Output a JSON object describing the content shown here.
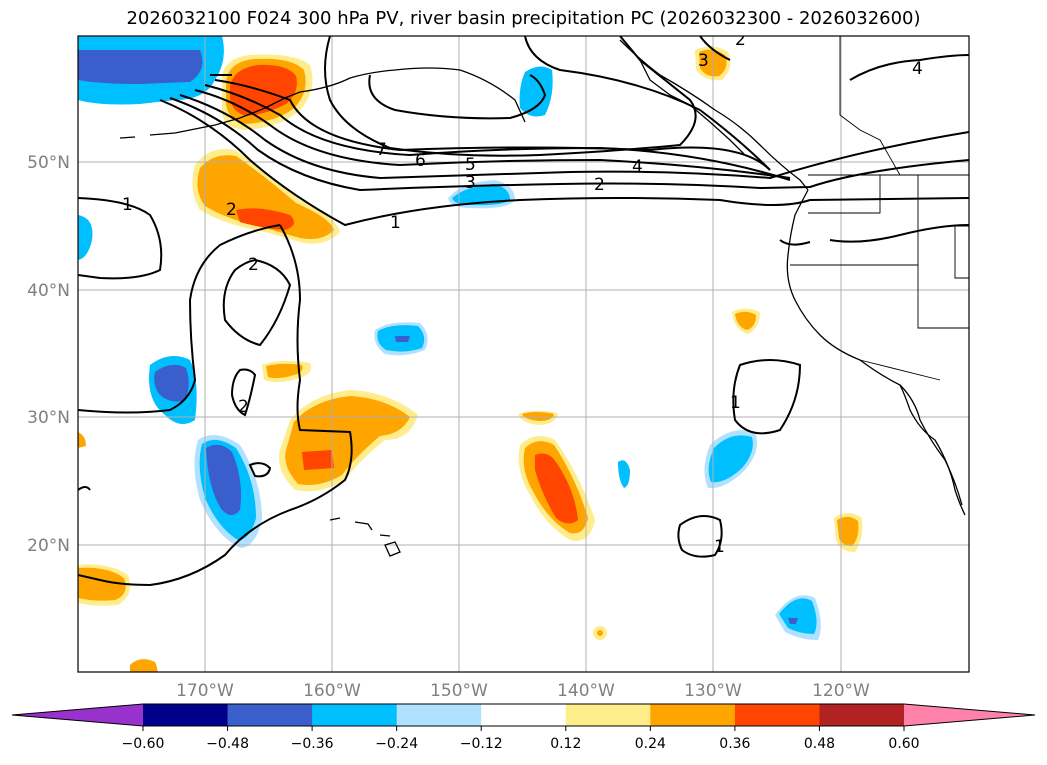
{
  "title": "2026032100 F024 300 hPa PV, river basin precipitation PC (2026032300 - 2026032600)",
  "latitude_labels": [
    "50°N",
    "40°N",
    "30°N",
    "20°N"
  ],
  "longitude_labels": [
    "170°W",
    "160°W",
    "150°W",
    "140°W",
    "130°W",
    "120°W"
  ],
  "colorbar": {
    "ticks": [
      "−0.60",
      "−0.48",
      "−0.36",
      "−0.24",
      "−0.12",
      "0.12",
      "0.24",
      "0.36",
      "0.48",
      "0.60"
    ],
    "colors": [
      "#9932cc",
      "#00008b",
      "#3a5fcd",
      "#00bfff",
      "#b0e2ff",
      "#ffffff",
      "#ffec8b",
      "#ffa500",
      "#ff4500",
      "#b22222",
      "#ff82ab"
    ]
  },
  "contour_labels": [
    "1",
    "2",
    "3",
    "4",
    "5",
    "6",
    "7",
    "1",
    "2",
    "2",
    "1",
    "1",
    "2",
    "3",
    "4",
    "2"
  ]
}
